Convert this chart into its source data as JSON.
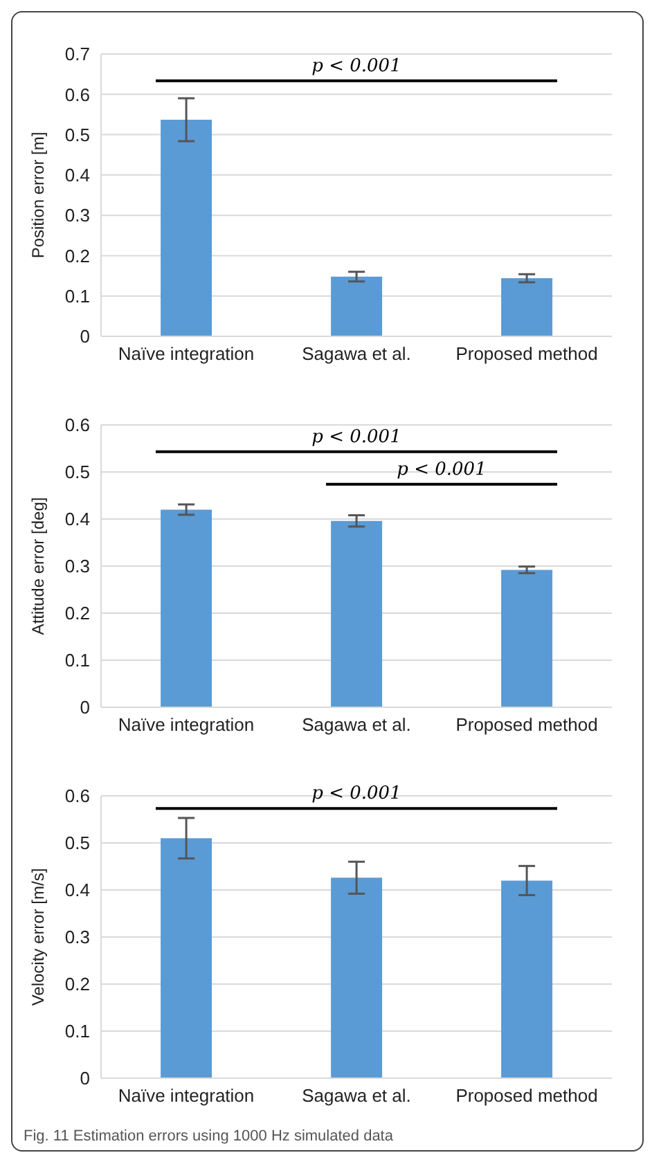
{
  "chart_data": [
    {
      "type": "bar",
      "ylabel": "Position error [m]",
      "categories": [
        "Naïve integration",
        "Sagawa et al.",
        "Proposed method"
      ],
      "values": [
        0.537,
        0.148,
        0.144
      ],
      "errors": [
        0.053,
        0.012,
        0.01
      ],
      "color": "#5b9bd5",
      "ylim": [
        0,
        0.7
      ],
      "yticks": [
        0,
        0.1,
        0.2,
        0.3,
        0.4,
        0.5,
        0.6,
        0.7
      ],
      "grid": "y",
      "annotations": [
        "p < 0.001"
      ]
    },
    {
      "type": "bar",
      "ylabel": "Attitude error [deg]",
      "categories": [
        "Naïve integration",
        "Sagawa et al.",
        "Proposed method"
      ],
      "values": [
        0.42,
        0.396,
        0.292
      ],
      "errors": [
        0.011,
        0.012,
        0.007
      ],
      "color": "#5b9bd5",
      "ylim": [
        0,
        0.6
      ],
      "yticks": [
        0,
        0.1,
        0.2,
        0.3,
        0.4,
        0.5,
        0.6
      ],
      "grid": "y",
      "annotations": [
        "p < 0.001",
        "p < 0.001"
      ]
    },
    {
      "type": "bar",
      "ylabel": "Velocity error [m/s]",
      "categories": [
        "Naïve integration",
        "Sagawa et al.",
        "Proposed method"
      ],
      "values": [
        0.51,
        0.426,
        0.42
      ],
      "errors": [
        0.043,
        0.034,
        0.031
      ],
      "color": "#5b9bd5",
      "ylim": [
        0,
        0.6
      ],
      "yticks": [
        0,
        0.1,
        0.2,
        0.3,
        0.4,
        0.5,
        0.6
      ],
      "grid": "y",
      "annotations": [
        "p < 0.001",
        "Fig. 11 Estimation errors using 1000 Hz simulated data"
      ]
    }
  ]
}
